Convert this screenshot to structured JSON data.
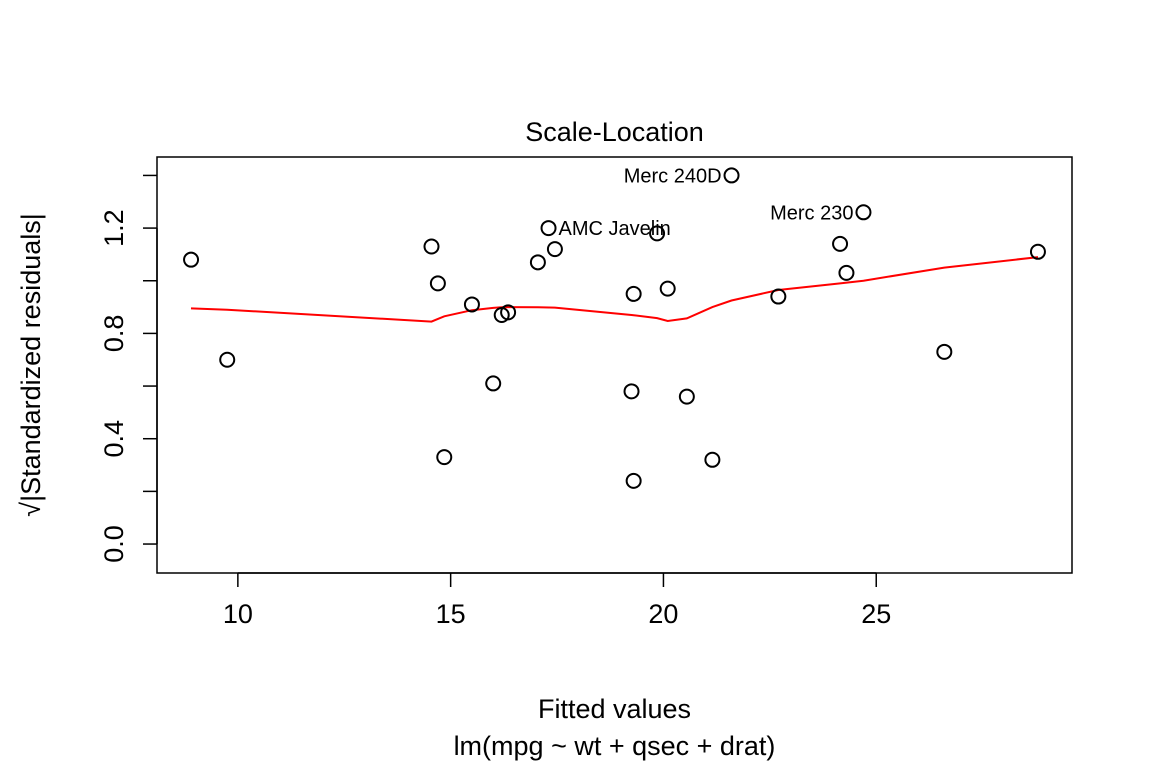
{
  "chart_data": {
    "type": "scatter",
    "title": "Scale-Location",
    "xlabel": "Fitted values",
    "subtitle": "lm(mpg ~ wt + qsec + drat)",
    "ylabel": "√|Standardized residuals|",
    "xlim": [
      8.1,
      29.6
    ],
    "ylim": [
      -0.11,
      1.47
    ],
    "xticks": [
      10,
      15,
      20,
      25
    ],
    "yticks": [
      0.0,
      0.4,
      0.8,
      1.2
    ],
    "xtick_labels": [
      "10",
      "15",
      "20",
      "25"
    ],
    "ytick_labels": [
      "0.0",
      "0.4",
      "0.8",
      "1.2"
    ],
    "grid": false,
    "points": [
      {
        "x": 8.9,
        "y": 1.08
      },
      {
        "x": 9.75,
        "y": 0.7
      },
      {
        "x": 14.55,
        "y": 1.13
      },
      {
        "x": 14.7,
        "y": 0.99
      },
      {
        "x": 14.85,
        "y": 0.33
      },
      {
        "x": 15.5,
        "y": 0.91
      },
      {
        "x": 16.0,
        "y": 0.61
      },
      {
        "x": 16.2,
        "y": 0.87
      },
      {
        "x": 16.35,
        "y": 0.88
      },
      {
        "x": 17.05,
        "y": 1.07
      },
      {
        "x": 17.3,
        "y": 1.2
      },
      {
        "x": 17.45,
        "y": 1.12
      },
      {
        "x": 19.25,
        "y": 0.58
      },
      {
        "x": 19.3,
        "y": 0.95
      },
      {
        "x": 19.3,
        "y": 0.24
      },
      {
        "x": 19.85,
        "y": 1.18
      },
      {
        "x": 20.1,
        "y": 0.97
      },
      {
        "x": 20.55,
        "y": 0.56
      },
      {
        "x": 21.15,
        "y": 0.32
      },
      {
        "x": 21.6,
        "y": 1.4
      },
      {
        "x": 22.7,
        "y": 0.94
      },
      {
        "x": 24.15,
        "y": 1.14
      },
      {
        "x": 24.3,
        "y": 1.03
      },
      {
        "x": 24.7,
        "y": 1.26
      },
      {
        "x": 26.6,
        "y": 0.73
      },
      {
        "x": 28.8,
        "y": 1.11
      }
    ],
    "annotations": [
      {
        "text": "Merc 240D",
        "x": 21.6,
        "y": 1.4
      },
      {
        "text": "Merc 230",
        "x": 24.7,
        "y": 1.26
      },
      {
        "text": "AMC Javelin",
        "x": 17.3,
        "y": 1.2
      }
    ],
    "smooth_line": {
      "color": "#ff0000",
      "x": [
        8.9,
        9.75,
        14.55,
        14.7,
        14.85,
        15.5,
        16.0,
        16.2,
        16.35,
        17.05,
        17.45,
        19.25,
        19.3,
        19.85,
        20.1,
        20.55,
        21.15,
        21.6,
        22.7,
        24.15,
        24.7,
        26.6,
        28.8
      ],
      "y": [
        0.895,
        0.89,
        0.845,
        0.855,
        0.865,
        0.888,
        0.897,
        0.899,
        0.9,
        0.899,
        0.898,
        0.87,
        0.869,
        0.858,
        0.847,
        0.857,
        0.9,
        0.925,
        0.965,
        0.99,
        1.0,
        1.05,
        1.09
      ]
    }
  }
}
